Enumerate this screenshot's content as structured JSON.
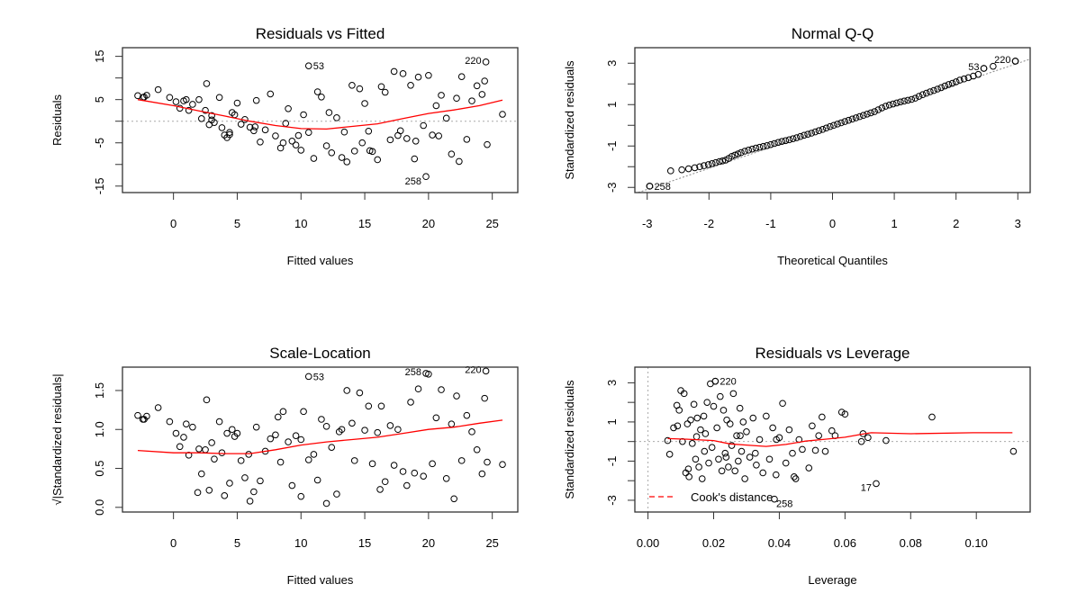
{
  "chart_data": [
    {
      "id": "resid-fitted",
      "type": "scatter",
      "title": "Residuals vs Fitted",
      "xlabel": "Fitted values",
      "ylabel": "Residuals",
      "xlim": [
        -4,
        27
      ],
      "ylim": [
        -16.5,
        17
      ],
      "xticks": [
        0,
        5,
        10,
        15,
        20,
        25
      ],
      "xtick_labels": [
        "0",
        "5",
        "10",
        "15",
        "20",
        "25"
      ],
      "yticks": [
        -15,
        -10,
        -5,
        0,
        5,
        10,
        15
      ],
      "ytick_labels": [
        "-15",
        "",
        "-5",
        "",
        "5",
        "",
        "15"
      ],
      "reference_line": {
        "y": 0,
        "style": "dotted"
      },
      "smooth": {
        "x": [
          -2.8,
          0,
          2,
          4,
          6,
          8,
          10,
          12,
          14,
          16,
          18,
          20,
          22,
          24,
          25.8
        ],
        "y": [
          5.0,
          3.6,
          2.4,
          1.2,
          0.0,
          -1.0,
          -1.7,
          -1.8,
          -1.2,
          -0.6,
          0.6,
          1.8,
          2.6,
          3.6,
          4.9
        ]
      },
      "labeled_points": [
        {
          "label": "53",
          "x": 10.6,
          "y": 12.8
        },
        {
          "label": "220",
          "x": 24.5,
          "y": 13.7
        },
        {
          "label": "258",
          "x": 19.8,
          "y": -12.8
        }
      ],
      "points": {
        "x": [
          -2.8,
          -2.4,
          -2.3,
          -2.1,
          -1.2,
          -0.3,
          0.2,
          0.5,
          0.8,
          1.0,
          1.2,
          1.5,
          2.0,
          2.2,
          2.5,
          2.6,
          2.8,
          3.0,
          3.2,
          3.6,
          3.8,
          4.0,
          4.2,
          4.4,
          4.6,
          4.8,
          5.0,
          5.3,
          5.6,
          6.0,
          6.3,
          6.5,
          6.8,
          7.2,
          7.6,
          8.0,
          8.4,
          8.6,
          9.0,
          9.3,
          9.6,
          10.0,
          10.2,
          10.6,
          11.0,
          11.3,
          11.6,
          12.0,
          12.4,
          12.8,
          13.2,
          13.6,
          14.0,
          14.2,
          14.6,
          15.0,
          15.3,
          15.6,
          16.0,
          16.3,
          16.6,
          17.0,
          17.3,
          17.6,
          18.0,
          18.3,
          18.6,
          18.9,
          19.2,
          19.6,
          20.0,
          20.3,
          20.6,
          21.0,
          21.4,
          21.8,
          22.2,
          22.6,
          23.0,
          23.4,
          23.8,
          24.2,
          24.4,
          24.6,
          25.8,
          3.0,
          4.4,
          6.4,
          8.8,
          12.2,
          13.4,
          15.4,
          17.8,
          19.0,
          20.8,
          22.4,
          9.8,
          14.8
        ],
        "y": [
          5.9,
          5.5,
          5.6,
          6.0,
          7.3,
          5.5,
          4.5,
          3.0,
          4.7,
          5.0,
          2.5,
          3.9,
          5.0,
          0.6,
          2.5,
          8.7,
          -0.8,
          0.3,
          -0.3,
          5.5,
          -1.5,
          -3.2,
          -3.8,
          -3.1,
          2.0,
          1.5,
          4.2,
          -0.7,
          0.4,
          -1.4,
          -2.2,
          4.8,
          -4.8,
          -2.0,
          6.3,
          -3.4,
          -6.2,
          -5.0,
          2.9,
          -4.6,
          -5.5,
          -6.7,
          1.5,
          -2.6,
          -8.6,
          6.8,
          5.6,
          -5.7,
          -7.3,
          0.8,
          -8.4,
          -9.4,
          8.3,
          -6.9,
          7.5,
          4.1,
          -2.3,
          -7.0,
          -8.9,
          8.0,
          6.7,
          -4.3,
          11.5,
          -3.3,
          11.0,
          -4.0,
          8.3,
          -8.7,
          10.2,
          -1.0,
          10.6,
          -3.2,
          3.6,
          6.0,
          0.7,
          -7.6,
          5.3,
          10.3,
          -4.2,
          4.7,
          8.2,
          6.2,
          9.3,
          -5.4,
          1.6,
          1.3,
          -2.6,
          -1.3,
          -0.5,
          2.0,
          -2.5,
          -6.8,
          -2.2,
          -4.6,
          -3.4,
          -9.3,
          -3.3,
          -5.0
        ],
        "note": "representative subset of the plotted points"
      }
    },
    {
      "id": "normal-qq",
      "type": "scatter",
      "title": "Normal Q-Q",
      "xlabel": "Theoretical Quantiles",
      "ylabel": "Standardized residuals",
      "xlim": [
        -3.2,
        3.2
      ],
      "ylim": [
        -3.25,
        3.75
      ],
      "xticks": [
        -3,
        -2,
        -1,
        0,
        1,
        2,
        3
      ],
      "xtick_labels": [
        "-3",
        "-2",
        "-1",
        "0",
        "1",
        "2",
        "3"
      ],
      "yticks": [
        -3,
        -2,
        -1,
        0,
        1,
        2,
        3
      ],
      "ytick_labels": [
        "-3",
        "",
        "-1",
        "",
        "1",
        "",
        "3"
      ],
      "reference_line": {
        "x": [
          -3.2,
          3.2
        ],
        "y": [
          -3.3,
          3.2
        ],
        "style": "dotted"
      },
      "labeled_points": [
        {
          "label": "258",
          "x": -2.96,
          "y": -2.94
        },
        {
          "label": "53",
          "x": 2.45,
          "y": 2.75
        },
        {
          "label": "220",
          "x": 2.96,
          "y": 3.1
        }
      ],
      "points": {
        "x": [
          -2.96,
          -2.62,
          -2.44,
          -2.33,
          -2.23,
          -2.15,
          -2.08,
          -2.01,
          -1.95,
          -1.89,
          -1.83,
          -1.78,
          -1.73,
          -1.68,
          -1.63,
          -1.58,
          -1.53,
          -1.48,
          -1.42,
          -1.36,
          -1.3,
          -1.24,
          -1.18,
          -1.12,
          -1.06,
          -1.0,
          -0.94,
          -0.88,
          -0.82,
          -0.76,
          -0.7,
          -0.64,
          -0.58,
          -0.52,
          -0.46,
          -0.4,
          -0.34,
          -0.28,
          -0.22,
          -0.16,
          -0.1,
          -0.04,
          0.02,
          0.08,
          0.14,
          0.2,
          0.26,
          0.32,
          0.38,
          0.44,
          0.5,
          0.56,
          0.62,
          0.68,
          0.74,
          0.8,
          0.86,
          0.92,
          0.98,
          1.04,
          1.1,
          1.16,
          1.22,
          1.28,
          1.34,
          1.4,
          1.46,
          1.52,
          1.58,
          1.64,
          1.7,
          1.76,
          1.82,
          1.88,
          1.94,
          2.0,
          2.06,
          2.13,
          2.2,
          2.28,
          2.36,
          2.45,
          2.6,
          2.96
        ],
        "y": [
          -2.94,
          -2.2,
          -2.15,
          -2.1,
          -2.05,
          -2.0,
          -1.95,
          -1.9,
          -1.85,
          -1.8,
          -1.75,
          -1.72,
          -1.68,
          -1.6,
          -1.5,
          -1.44,
          -1.38,
          -1.32,
          -1.25,
          -1.2,
          -1.15,
          -1.1,
          -1.06,
          -1.02,
          -0.98,
          -0.93,
          -0.88,
          -0.83,
          -0.78,
          -0.74,
          -0.7,
          -0.65,
          -0.6,
          -0.54,
          -0.48,
          -0.43,
          -0.38,
          -0.32,
          -0.26,
          -0.2,
          -0.13,
          -0.06,
          0.0,
          0.06,
          0.12,
          0.18,
          0.24,
          0.3,
          0.36,
          0.42,
          0.48,
          0.54,
          0.6,
          0.66,
          0.75,
          0.84,
          0.92,
          0.98,
          1.03,
          1.08,
          1.13,
          1.17,
          1.21,
          1.25,
          1.31,
          1.4,
          1.48,
          1.55,
          1.62,
          1.68,
          1.75,
          1.82,
          1.9,
          1.97,
          2.03,
          2.1,
          2.18,
          2.24,
          2.3,
          2.38,
          2.46,
          2.75,
          2.85,
          3.1
        ]
      }
    },
    {
      "id": "scale-location",
      "type": "scatter",
      "title": "Scale-Location",
      "xlabel": "Fitted values",
      "ylabel": "√|Standardized residuals|",
      "xlim": [
        -4,
        27
      ],
      "ylim": [
        -0.06,
        1.8
      ],
      "xticks": [
        0,
        5,
        10,
        15,
        20,
        25
      ],
      "xtick_labels": [
        "0",
        "5",
        "10",
        "15",
        "20",
        "25"
      ],
      "yticks": [
        0,
        0.5,
        1.0,
        1.5
      ],
      "ytick_labels": [
        "0.0",
        "0.5",
        "1.0",
        "1.5"
      ],
      "smooth": {
        "x": [
          -2.8,
          0,
          2,
          4,
          6,
          8,
          10,
          12,
          14,
          16,
          18,
          20,
          22,
          24,
          25.8
        ],
        "y": [
          0.73,
          0.7,
          0.7,
          0.69,
          0.69,
          0.74,
          0.8,
          0.84,
          0.87,
          0.9,
          0.95,
          1.0,
          1.03,
          1.08,
          1.12
        ]
      },
      "labeled_points": [
        {
          "label": "53",
          "x": 10.6,
          "y": 1.68
        },
        {
          "label": "258",
          "x": 19.8,
          "y": 1.72
        },
        {
          "label": "220",
          "x": 24.5,
          "y": 1.75
        }
      ],
      "points": {
        "x": [
          -2.8,
          -2.4,
          -2.3,
          -2.1,
          -1.2,
          -0.3,
          0.2,
          0.5,
          0.8,
          1.0,
          1.2,
          1.5,
          2.0,
          2.2,
          2.5,
          2.6,
          2.8,
          3.0,
          3.2,
          3.6,
          3.8,
          4.0,
          4.2,
          4.4,
          4.6,
          4.8,
          5.0,
          5.3,
          5.6,
          6.0,
          6.3,
          6.5,
          6.8,
          7.2,
          7.6,
          8.0,
          8.4,
          8.6,
          9.0,
          9.3,
          9.6,
          10.0,
          10.2,
          10.6,
          11.0,
          11.3,
          11.6,
          12.0,
          12.4,
          12.8,
          13.2,
          13.6,
          14.0,
          14.2,
          14.6,
          15.0,
          15.3,
          15.6,
          16.0,
          16.3,
          16.6,
          17.0,
          17.3,
          17.6,
          18.0,
          18.3,
          18.6,
          18.9,
          19.2,
          19.6,
          20.0,
          20.3,
          20.6,
          21.0,
          21.4,
          21.8,
          22.2,
          22.6,
          23.0,
          23.4,
          23.8,
          24.2,
          24.4,
          24.6,
          25.8,
          1.9,
          5.9,
          10.0,
          12.0,
          16.2,
          22.0,
          13.0,
          8.2
        ],
        "y": [
          1.18,
          1.13,
          1.13,
          1.17,
          1.28,
          1.1,
          0.95,
          0.78,
          0.9,
          1.07,
          0.67,
          1.03,
          0.75,
          0.43,
          0.74,
          1.38,
          0.22,
          0.83,
          0.62,
          1.1,
          0.7,
          0.15,
          0.95,
          0.31,
          1.0,
          0.91,
          0.95,
          0.6,
          0.38,
          0.08,
          0.2,
          1.03,
          0.34,
          0.72,
          0.88,
          0.93,
          0.58,
          1.23,
          0.84,
          0.28,
          0.92,
          0.14,
          1.23,
          0.61,
          0.68,
          0.35,
          1.13,
          0.05,
          0.77,
          0.17,
          1.0,
          1.5,
          1.08,
          0.6,
          1.47,
          0.99,
          1.3,
          0.56,
          0.96,
          1.3,
          0.33,
          1.05,
          0.54,
          1.0,
          0.46,
          0.28,
          1.35,
          0.44,
          1.52,
          0.4,
          1.71,
          0.56,
          1.15,
          1.51,
          0.37,
          1.07,
          1.43,
          0.6,
          1.18,
          0.97,
          0.74,
          0.43,
          1.4,
          0.58,
          0.55,
          0.19,
          0.68,
          0.87,
          1.04,
          0.23,
          0.11,
          0.97,
          1.16
        ]
      }
    },
    {
      "id": "resid-leverage",
      "type": "scatter",
      "title": "Residuals vs Leverage",
      "xlabel": "Leverage",
      "ylabel": "Standardized residuals",
      "xlim": [
        -0.004,
        0.1164
      ],
      "ylim": [
        -3.6,
        3.8
      ],
      "xticks": [
        0.0,
        0.02,
        0.04,
        0.06,
        0.08,
        0.1
      ],
      "xtick_labels": [
        "0.00",
        "0.02",
        "0.04",
        "0.06",
        "0.08",
        "0.10"
      ],
      "yticks": [
        -3,
        -2,
        -1,
        0,
        1,
        2,
        3
      ],
      "ytick_labels": [
        "-3",
        "",
        "-1",
        "",
        "1",
        "",
        "3"
      ],
      "reference_lines": [
        {
          "y": 0,
          "style": "dotted"
        },
        {
          "x": 0,
          "style": "dotted"
        }
      ],
      "smooth": {
        "x": [
          0.006,
          0.012,
          0.02,
          0.025,
          0.03,
          0.036,
          0.042,
          0.048,
          0.054,
          0.06,
          0.066,
          0.068,
          0.08,
          0.099,
          0.111
        ],
        "y": [
          0.15,
          0.12,
          0.05,
          -0.12,
          -0.18,
          -0.25,
          -0.15,
          0.02,
          0.12,
          0.22,
          0.4,
          0.45,
          0.4,
          0.45,
          0.45
        ]
      },
      "legend": {
        "label": "Cook's distance",
        "position": "bottom-left",
        "color": "#ff0000",
        "style": "dashed"
      },
      "labeled_points": [
        {
          "label": "220",
          "x": 0.0205,
          "y": 3.08
        },
        {
          "label": "17",
          "x": 0.0695,
          "y": -2.15
        },
        {
          "label": "258",
          "x": 0.0385,
          "y": -2.94
        }
      ],
      "points": {
        "x": [
          0.006,
          0.0066,
          0.0078,
          0.0088,
          0.009,
          0.0095,
          0.01,
          0.0105,
          0.011,
          0.0115,
          0.012,
          0.0125,
          0.013,
          0.0135,
          0.014,
          0.0145,
          0.015,
          0.0155,
          0.016,
          0.0165,
          0.017,
          0.0175,
          0.018,
          0.0185,
          0.019,
          0.0195,
          0.02,
          0.0205,
          0.021,
          0.0215,
          0.022,
          0.0225,
          0.023,
          0.0235,
          0.024,
          0.0245,
          0.025,
          0.0255,
          0.026,
          0.0265,
          0.027,
          0.0275,
          0.028,
          0.0285,
          0.029,
          0.0295,
          0.03,
          0.031,
          0.032,
          0.033,
          0.034,
          0.035,
          0.036,
          0.037,
          0.038,
          0.039,
          0.04,
          0.041,
          0.042,
          0.043,
          0.044,
          0.045,
          0.046,
          0.047,
          0.049,
          0.05,
          0.051,
          0.052,
          0.053,
          0.054,
          0.056,
          0.057,
          0.059,
          0.06,
          0.065,
          0.0655,
          0.067,
          0.0725,
          0.0865,
          0.1113,
          0.0123,
          0.0148,
          0.0172,
          0.0238,
          0.0281,
          0.0327,
          0.0391,
          0.0445
        ],
        "y": [
          0.05,
          -0.65,
          0.7,
          1.85,
          0.8,
          1.6,
          2.6,
          0.0,
          2.45,
          -1.6,
          0.9,
          -1.8,
          1.1,
          -0.1,
          1.9,
          -0.9,
          1.2,
          -1.3,
          0.6,
          -1.9,
          1.3,
          0.4,
          2.0,
          -1.1,
          2.95,
          -0.3,
          1.8,
          3.08,
          0.7,
          -0.9,
          2.3,
          -1.5,
          1.6,
          -0.6,
          1.1,
          -1.3,
          0.9,
          -0.2,
          2.45,
          -1.5,
          0.3,
          -1.0,
          1.7,
          -0.5,
          1.0,
          -1.9,
          0.5,
          -0.8,
          1.2,
          -1.2,
          0.1,
          -1.6,
          1.3,
          -0.9,
          0.7,
          -1.7,
          0.2,
          1.95,
          -1.1,
          0.6,
          -0.6,
          -1.9,
          0.1,
          -0.4,
          -1.35,
          0.8,
          -0.45,
          0.3,
          1.25,
          -0.5,
          0.55,
          0.3,
          1.5,
          1.4,
          0.0,
          0.4,
          0.2,
          0.05,
          1.25,
          -0.5,
          -1.4,
          0.25,
          -0.5,
          -0.8,
          0.3,
          -0.6,
          0.1,
          -1.8
        ]
      }
    }
  ]
}
